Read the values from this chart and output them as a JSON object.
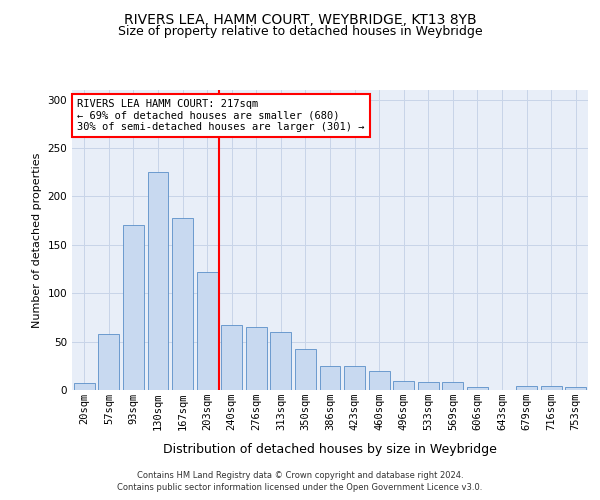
{
  "title": "RIVERS LEA, HAMM COURT, WEYBRIDGE, KT13 8YB",
  "subtitle": "Size of property relative to detached houses in Weybridge",
  "xlabel": "Distribution of detached houses by size in Weybridge",
  "ylabel": "Number of detached properties",
  "bar_categories": [
    "20sqm",
    "57sqm",
    "93sqm",
    "130sqm",
    "167sqm",
    "203sqm",
    "240sqm",
    "276sqm",
    "313sqm",
    "350sqm",
    "386sqm",
    "423sqm",
    "460sqm",
    "496sqm",
    "533sqm",
    "569sqm",
    "606sqm",
    "643sqm",
    "679sqm",
    "716sqm",
    "753sqm"
  ],
  "bar_values": [
    7,
    58,
    170,
    225,
    178,
    122,
    67,
    65,
    60,
    42,
    25,
    25,
    20,
    9,
    8,
    8,
    3,
    0,
    4,
    4,
    3
  ],
  "bar_color": "#c8d9f0",
  "bar_edge_color": "#5a8fc8",
  "grid_color": "#c8d4e8",
  "background_color": "#e8eef8",
  "vline_color": "red",
  "annotation_text": "RIVERS LEA HAMM COURT: 217sqm\n← 69% of detached houses are smaller (680)\n30% of semi-detached houses are larger (301) →",
  "annotation_box_color": "white",
  "annotation_box_edge": "red",
  "ylim": [
    0,
    310
  ],
  "yticks": [
    0,
    50,
    100,
    150,
    200,
    250,
    300
  ],
  "footer_line1": "Contains HM Land Registry data © Crown copyright and database right 2024.",
  "footer_line2": "Contains public sector information licensed under the Open Government Licence v3.0.",
  "title_fontsize": 10,
  "subtitle_fontsize": 9,
  "xlabel_fontsize": 9,
  "ylabel_fontsize": 8,
  "tick_fontsize": 7.5,
  "footer_fontsize": 6,
  "annotation_fontsize": 7.5
}
